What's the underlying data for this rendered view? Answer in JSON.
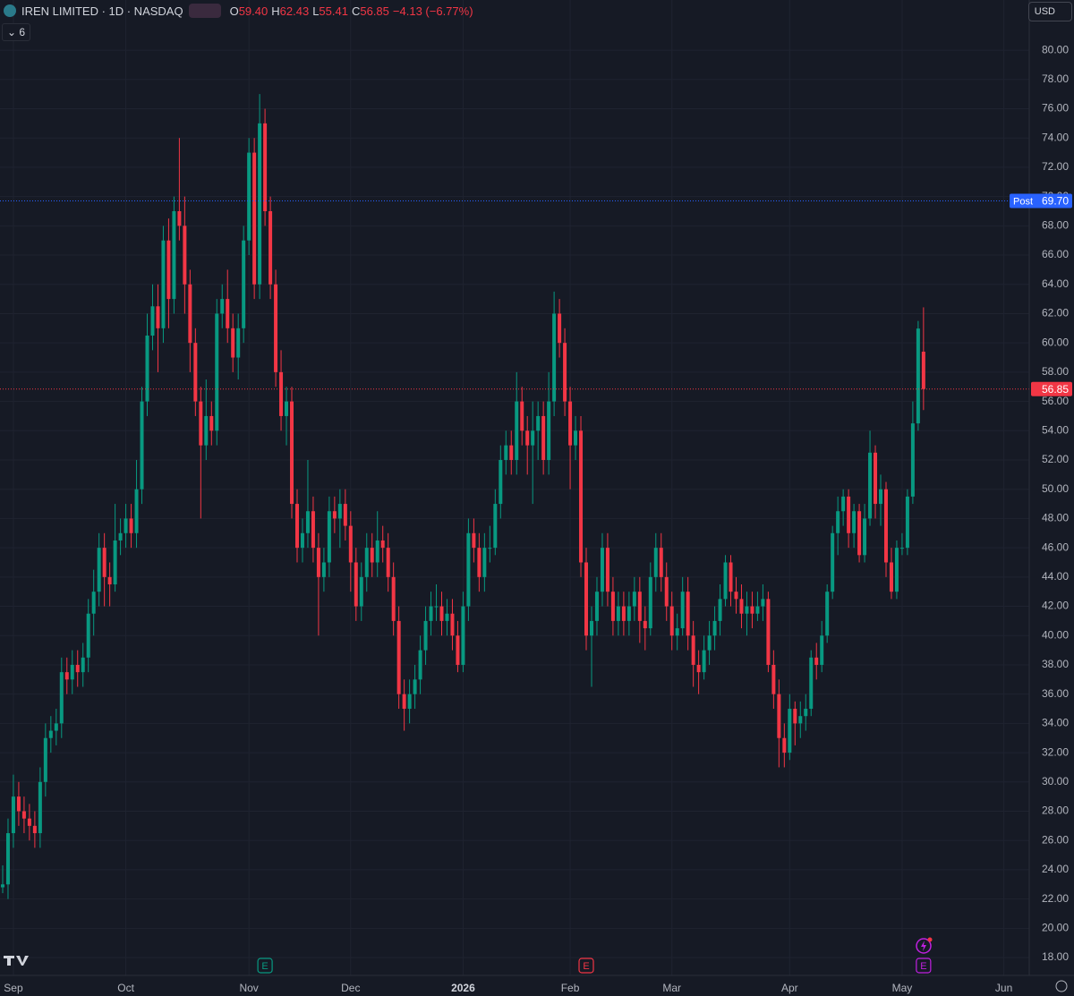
{
  "chart_data": {
    "type": "candlestick",
    "title": "IREN LIMITED · 1D · NASDAQ",
    "header_values": [
      {
        "label": "O",
        "value": 59.4,
        "value_label": "59.40"
      },
      {
        "label": "H",
        "value": 62.43,
        "value_label": "62.43"
      },
      {
        "label": "L",
        "value": 55.41,
        "value_label": "55.41"
      },
      {
        "label": "C",
        "value": 56.85,
        "value_label": "56.85"
      }
    ],
    "change_label": "−4.13 (−6.77%)",
    "indicator_count": 6,
    "currency": "USD",
    "up_color": "#089981",
    "down_color": "#f23645",
    "grid": true,
    "xlim": [
      -0.5,
      191.75
    ],
    "ylim": [
      16.78,
      83.43
    ],
    "yticks": [
      {
        "value": 18,
        "label": "18.00"
      },
      {
        "value": 20,
        "label": "20.00"
      },
      {
        "value": 22,
        "label": "22.00"
      },
      {
        "value": 24,
        "label": "24.00"
      },
      {
        "value": 26,
        "label": "26.00"
      },
      {
        "value": 28,
        "label": "28.00"
      },
      {
        "value": 30,
        "label": "30.00"
      },
      {
        "value": 32,
        "label": "32.00"
      },
      {
        "value": 34,
        "label": "34.00"
      },
      {
        "value": 36,
        "label": "36.00"
      },
      {
        "value": 38,
        "label": "38.00"
      },
      {
        "value": 40,
        "label": "40.00"
      },
      {
        "value": 42,
        "label": "42.00"
      },
      {
        "value": 44,
        "label": "44.00"
      },
      {
        "value": 46,
        "label": "46.00"
      },
      {
        "value": 48,
        "label": "48.00"
      },
      {
        "value": 50,
        "label": "50.00"
      },
      {
        "value": 52,
        "label": "52.00"
      },
      {
        "value": 54,
        "label": "54.00"
      },
      {
        "value": 56,
        "label": "56.00"
      },
      {
        "value": 58,
        "label": "58.00"
      },
      {
        "value": 60,
        "label": "60.00"
      },
      {
        "value": 62,
        "label": "62.00"
      },
      {
        "value": 64,
        "label": "64.00"
      },
      {
        "value": 66,
        "label": "66.00"
      },
      {
        "value": 68,
        "label": "68.00"
      },
      {
        "value": 70,
        "label": "70.00"
      },
      {
        "value": 72,
        "label": "72.00"
      },
      {
        "value": 74,
        "label": "74.00"
      },
      {
        "value": 76,
        "label": "76.00"
      },
      {
        "value": 78,
        "label": "78.00"
      },
      {
        "value": 80,
        "label": "80.00"
      }
    ],
    "xticks": [
      {
        "value": 2,
        "label": "Sep"
      },
      {
        "value": 23,
        "label": "Oct"
      },
      {
        "value": 46,
        "label": "Nov"
      },
      {
        "value": 65,
        "label": "Dec"
      },
      {
        "value": 86,
        "label": "2026"
      },
      {
        "value": 106,
        "label": "Feb"
      },
      {
        "value": 125,
        "label": "Mar"
      },
      {
        "value": 147,
        "label": "Apr"
      },
      {
        "value": 168,
        "label": "May"
      },
      {
        "value": 187,
        "label": "Jun"
      }
    ],
    "open": [
      22.8,
      23,
      26.5,
      29,
      28,
      27.5,
      27,
      26.5,
      30,
      33,
      33.5,
      34,
      37.5,
      37,
      38,
      37.5,
      38.5,
      41.5,
      43,
      46,
      44,
      43.5,
      46.5,
      47,
      48,
      47,
      50,
      56,
      60.5,
      62.5,
      61,
      67,
      63,
      69,
      68,
      64,
      60,
      56,
      53,
      55,
      54,
      62,
      63,
      61,
      59,
      61,
      67,
      73,
      64,
      75,
      69,
      64,
      58,
      55,
      56,
      49,
      46,
      47,
      48.5,
      46,
      44,
      45,
      48.5,
      48,
      49,
      47.5,
      45,
      42,
      44,
      46,
      45,
      46.5,
      46,
      44,
      41,
      36,
      35,
      36,
      37,
      39,
      41,
      42,
      42,
      41,
      41.5,
      40,
      38,
      42,
      47,
      46,
      44,
      46,
      46,
      49,
      52,
      53,
      52,
      56,
      54,
      53,
      54,
      55,
      52,
      56,
      62,
      60,
      56,
      53,
      54,
      45,
      40,
      41,
      43,
      46,
      43,
      41,
      42,
      41,
      42,
      43,
      41,
      40.5,
      44,
      46,
      44,
      42,
      40,
      40.5,
      43,
      40,
      38,
      37.5,
      39,
      40,
      41,
      42.5,
      45,
      43,
      42.5,
      41.5,
      42,
      41.5,
      42,
      42.5,
      38,
      36,
      33,
      32,
      35,
      34,
      34.5,
      35,
      38.5,
      38,
      40,
      43,
      47,
      48.5,
      49.5,
      47,
      48.5,
      45.5,
      48,
      52.5,
      49,
      50,
      45,
      43,
      46,
      46,
      49.5,
      54.5,
      59.4
    ],
    "high": [
      24.3,
      27.5,
      30.5,
      30,
      29,
      28.5,
      28,
      31,
      34,
      34.5,
      35,
      38.5,
      38.5,
      39,
      39,
      39.5,
      42.5,
      44.5,
      47,
      47,
      45,
      49,
      48,
      49,
      49,
      52,
      57,
      62,
      64,
      64,
      68,
      68.5,
      70,
      74,
      70,
      65,
      61,
      57,
      57.5,
      56,
      63,
      64,
      65,
      62,
      62,
      68,
      74,
      74,
      77,
      76,
      70,
      65,
      59.5,
      57,
      57,
      50,
      48,
      52,
      49.5,
      47,
      46,
      49.5,
      49.5,
      50,
      50,
      48.5,
      46,
      45,
      47,
      47,
      48.5,
      47.5,
      47,
      45,
      42,
      37,
      37,
      38,
      40,
      42,
      43,
      43.5,
      43,
      42.5,
      42.5,
      41,
      43,
      48,
      48,
      47,
      47,
      47.5,
      50,
      53,
      54,
      54,
      58,
      57,
      55,
      56,
      56,
      56,
      58,
      63.5,
      63,
      61,
      57,
      55,
      55,
      46,
      42,
      44,
      47,
      47,
      44,
      43,
      43,
      43,
      44,
      44,
      42,
      45,
      47,
      47,
      45,
      43,
      41.5,
      44,
      44,
      41,
      39,
      40,
      41,
      42,
      43.5,
      45.5,
      45.5,
      44,
      43.5,
      43,
      43,
      43,
      43.5,
      43,
      39,
      37,
      34,
      36,
      35.5,
      35.5,
      36,
      39,
      39.5,
      41,
      43.5,
      47.5,
      49.5,
      50,
      50,
      49,
      49,
      49,
      54,
      53,
      51,
      50.5,
      46,
      46.5,
      47,
      50,
      56,
      61.5,
      62.43
    ],
    "low": [
      22.4,
      22,
      25.5,
      27,
      26.5,
      26,
      25.5,
      25.5,
      29,
      32,
      32.5,
      33,
      36,
      36,
      36.5,
      36.5,
      37.5,
      40,
      42,
      42,
      42,
      43,
      45.5,
      46,
      46,
      46,
      49,
      55,
      59.5,
      58,
      60,
      61,
      62,
      67,
      62,
      58,
      55,
      48,
      52,
      53,
      53,
      61,
      60,
      58,
      57.5,
      60,
      66,
      63,
      63,
      68,
      63,
      57,
      54,
      53,
      48,
      45,
      45,
      46,
      45,
      40,
      43,
      44,
      47,
      46,
      46.5,
      43,
      41,
      41,
      43,
      44,
      44,
      45,
      43,
      40,
      35,
      33.5,
      34,
      35,
      36,
      38,
      40,
      41,
      40,
      40,
      39,
      37.5,
      37.5,
      41,
      45,
      43,
      43,
      45,
      45.5,
      48,
      51,
      51,
      51,
      53,
      51,
      49,
      52,
      51,
      51,
      55,
      59,
      55,
      50,
      52,
      44,
      39,
      36.5,
      40,
      42,
      42,
      40,
      40,
      40,
      40,
      41,
      39.5,
      39,
      40,
      43,
      43,
      41,
      39,
      39,
      40,
      39,
      36.5,
      36,
      37,
      38,
      39,
      40,
      42,
      42,
      41.5,
      40.5,
      40,
      40.5,
      41,
      41,
      37.5,
      35,
      31,
      31,
      31.5,
      32.5,
      33,
      33.5,
      34.5,
      37,
      37.5,
      39.5,
      42.5,
      45.5,
      47.5,
      46,
      46,
      45,
      45,
      47.5,
      48,
      47.5,
      44,
      42.5,
      42.5,
      45.5,
      45.5,
      49,
      54,
      55.41
    ],
    "close": [
      23,
      26.5,
      29,
      28,
      27.5,
      27,
      26.5,
      30,
      33,
      33.5,
      34,
      37.5,
      37,
      38,
      37.5,
      38.5,
      41.5,
      43,
      46,
      44,
      43.5,
      46.5,
      47,
      48,
      47,
      50,
      56,
      60.5,
      62.5,
      61,
      67,
      63,
      69,
      68,
      64,
      60,
      56,
      53,
      55,
      54,
      62,
      63,
      61,
      59,
      61,
      67,
      73,
      64,
      75,
      69,
      64,
      58,
      55,
      56,
      49,
      46,
      47,
      48.5,
      46,
      44,
      45,
      48.5,
      48,
      49,
      47.5,
      45,
      42,
      44,
      46,
      45,
      46.5,
      46,
      44,
      41,
      36,
      35,
      36,
      37,
      39,
      41,
      42,
      42,
      41,
      41.5,
      40,
      38,
      42,
      47,
      46,
      44,
      46,
      46,
      49,
      52,
      53,
      52,
      56,
      54,
      53,
      54,
      55,
      52,
      56,
      62,
      60,
      56,
      53,
      54,
      45,
      40,
      41,
      43,
      46,
      43,
      41,
      42,
      41,
      42,
      43,
      41,
      40.5,
      44,
      46,
      44,
      42,
      40,
      40.5,
      43,
      40,
      38,
      37.5,
      39,
      40,
      41,
      42.5,
      45,
      43,
      42.5,
      41.5,
      42,
      41.5,
      42,
      42.5,
      38,
      36,
      33,
      32,
      35,
      34,
      34.5,
      35,
      38.5,
      38,
      40,
      43,
      47,
      48.5,
      49.5,
      47,
      48.5,
      45.5,
      48,
      52.5,
      49,
      50,
      45,
      43,
      46,
      46,
      49.5,
      54.5,
      60.98,
      56.85
    ],
    "price_lines": [
      {
        "name": "Post",
        "value": 69.7,
        "value_label": "69.70",
        "color": "#2962ff"
      },
      {
        "value": 56.85,
        "color": "#f23645"
      }
    ],
    "events": [
      {
        "label": "E",
        "x": 49,
        "color": "#089981"
      },
      {
        "label": "E",
        "x": 109,
        "color": "#f23645"
      },
      {
        "label": "E",
        "x": 172,
        "color": "#c020e0"
      }
    ]
  }
}
